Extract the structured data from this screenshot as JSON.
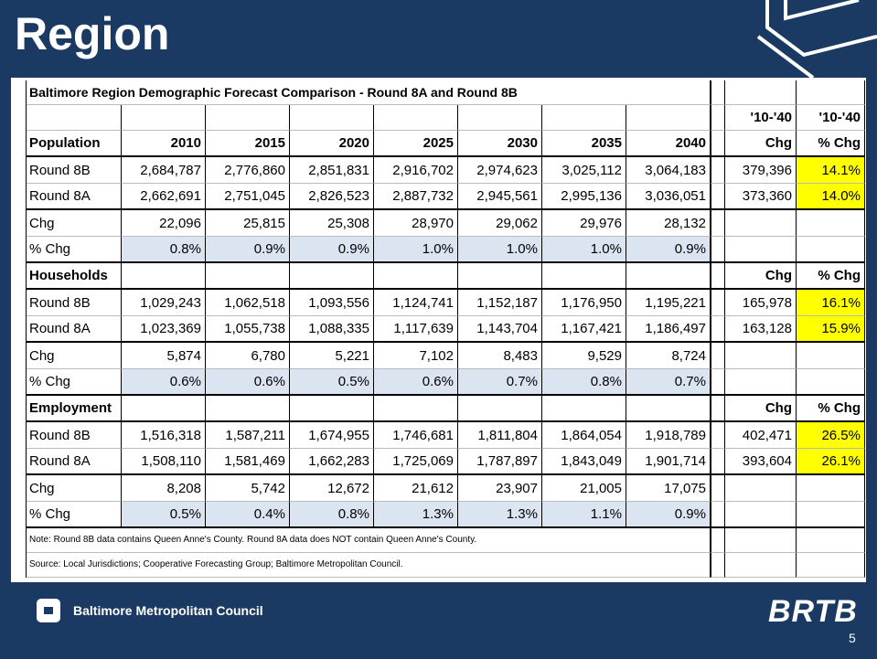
{
  "title": "Region",
  "table": {
    "caption": "Baltimore Region Demographic Forecast Comparison - Round 8A and Round 8B",
    "top_chg": "'10-'40",
    "top_pct": "'10-'40",
    "sections": [
      {
        "name": "Population",
        "years": [
          "2010",
          "2015",
          "2020",
          "2025",
          "2030",
          "2035",
          "2040"
        ],
        "chg_label": "Chg",
        "pct_label": "% Chg",
        "rows": [
          {
            "label": "Round 8B",
            "values": [
              "2,684,787",
              "2,776,860",
              "2,851,831",
              "2,916,702",
              "2,974,623",
              "3,025,112",
              "3,064,183"
            ],
            "chg": "379,396",
            "pct": "14.1%"
          },
          {
            "label": "Round 8A",
            "values": [
              "2,662,691",
              "2,751,045",
              "2,826,523",
              "2,887,732",
              "2,945,561",
              "2,995,136",
              "3,036,051"
            ],
            "chg": "373,360",
            "pct": "14.0%"
          },
          {
            "label": "Chg",
            "values": [
              "22,096",
              "25,815",
              "25,308",
              "28,970",
              "29,062",
              "29,976",
              "28,132"
            ]
          },
          {
            "label": "% Chg",
            "values": [
              "0.8%",
              "0.9%",
              "0.9%",
              "1.0%",
              "1.0%",
              "1.0%",
              "0.9%"
            ]
          }
        ]
      },
      {
        "name": "Households",
        "chg_label": "Chg",
        "pct_label": "% Chg",
        "rows": [
          {
            "label": "Round 8B",
            "values": [
              "1,029,243",
              "1,062,518",
              "1,093,556",
              "1,124,741",
              "1,152,187",
              "1,176,950",
              "1,195,221"
            ],
            "chg": "165,978",
            "pct": "16.1%"
          },
          {
            "label": "Round 8A",
            "values": [
              "1,023,369",
              "1,055,738",
              "1,088,335",
              "1,117,639",
              "1,143,704",
              "1,167,421",
              "1,186,497"
            ],
            "chg": "163,128",
            "pct": "15.9%"
          },
          {
            "label": "Chg",
            "values": [
              "5,874",
              "6,780",
              "5,221",
              "7,102",
              "8,483",
              "9,529",
              "8,724"
            ]
          },
          {
            "label": "% Chg",
            "values": [
              "0.6%",
              "0.6%",
              "0.5%",
              "0.6%",
              "0.7%",
              "0.8%",
              "0.7%"
            ]
          }
        ]
      },
      {
        "name": "Employment",
        "chg_label": "Chg",
        "pct_label": "% Chg",
        "rows": [
          {
            "label": "Round 8B",
            "values": [
              "1,516,318",
              "1,587,211",
              "1,674,955",
              "1,746,681",
              "1,811,804",
              "1,864,054",
              "1,918,789"
            ],
            "chg": "402,471",
            "pct": "26.5%"
          },
          {
            "label": "Round 8A",
            "values": [
              "1,508,110",
              "1,581,469",
              "1,662,283",
              "1,725,069",
              "1,787,897",
              "1,843,049",
              "1,901,714"
            ],
            "chg": "393,604",
            "pct": "26.1%"
          },
          {
            "label": "Chg",
            "values": [
              "8,208",
              "5,742",
              "12,672",
              "21,612",
              "23,907",
              "21,005",
              "17,075"
            ]
          },
          {
            "label": "% Chg",
            "values": [
              "0.5%",
              "0.4%",
              "0.8%",
              "1.3%",
              "1.3%",
              "1.1%",
              "0.9%"
            ]
          }
        ]
      }
    ],
    "note": "Note: Round 8B data contains Queen Anne's County.  Round 8A data does NOT contain Queen Anne's County.",
    "source": "Source: Local Jurisdictions; Cooperative Forecasting Group; Baltimore Metropolitan Council."
  },
  "footer": {
    "org": "Baltimore Metropolitan Council",
    "logo": "BRTB",
    "page": "5"
  }
}
